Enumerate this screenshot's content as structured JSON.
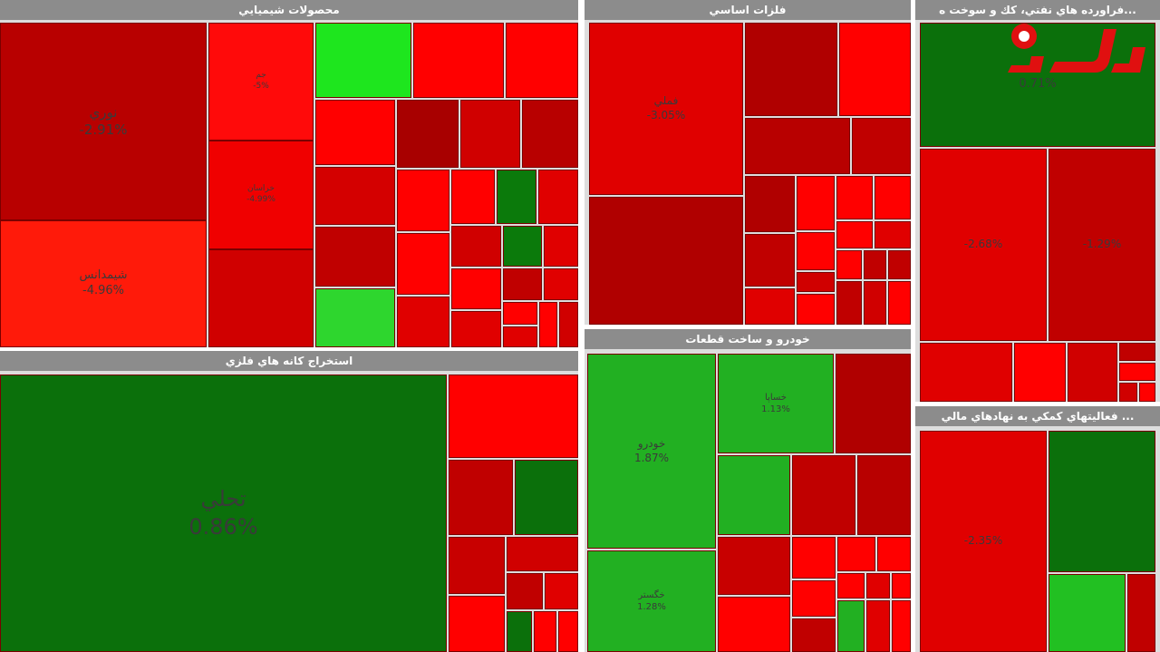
{
  "chart_data": [
    {
      "type": "treemap",
      "title": "محصولات شيميايي",
      "tiles": {
        "labels": [
          "نوري",
          "شيمدانس",
          "جم",
          "خراسان"
        ],
        "values": [
          -2.91,
          -4.96,
          -5,
          -4.99
        ],
        "value_labels": [
          "-2.91%",
          "-4.96%",
          "-5%",
          "-4.99%"
        ],
        "colors": [
          "#b80000",
          "#ff1a0a",
          "#ff0a0a",
          "#f00000"
        ]
      }
    },
    {
      "type": "treemap",
      "title": "فلزات اساسي",
      "tiles": {
        "labels": [
          "فملي"
        ],
        "values": [
          -3.05
        ],
        "value_labels": [
          "-3.05%"
        ],
        "colors": [
          "#e00000"
        ]
      }
    },
    {
      "type": "treemap",
      "title": "...فراورده هاي نفتي، كك و سوخت ه",
      "tiles": {
        "labels": [
          null,
          null,
          null
        ],
        "values": [
          0.71,
          -2.68,
          -1.29
        ],
        "value_labels": [
          "0.71%",
          "-2.68%",
          "-1.29%"
        ],
        "colors": [
          "#0b700b",
          "#e00000",
          "#c00000"
        ]
      }
    },
    {
      "type": "treemap",
      "title": "استخراج كانه هاي فلزي",
      "tiles": {
        "labels": [
          "تحلي"
        ],
        "values": [
          0.86
        ],
        "value_labels": [
          "0.86%"
        ],
        "colors": [
          "#0b700b"
        ]
      }
    },
    {
      "type": "treemap",
      "title": "خودرو و ساخت قطعات",
      "tiles": {
        "labels": [
          "خودرو",
          "خگستر",
          "خساپا"
        ],
        "values": [
          1.87,
          1.28,
          1.13
        ],
        "value_labels": [
          "1.87%",
          "1.28%",
          "1.13%"
        ],
        "colors": [
          "#22b022",
          "#22b022",
          "#22b022"
        ]
      }
    },
    {
      "type": "treemap",
      "title": "... فعاليتهاي كمكي به نهادهاي مالي",
      "tiles": {
        "labels": [
          null
        ],
        "values": [
          -2.35
        ],
        "value_labels": [
          "-2.35%"
        ],
        "colors": [
          "#e00000"
        ]
      }
    }
  ]
}
